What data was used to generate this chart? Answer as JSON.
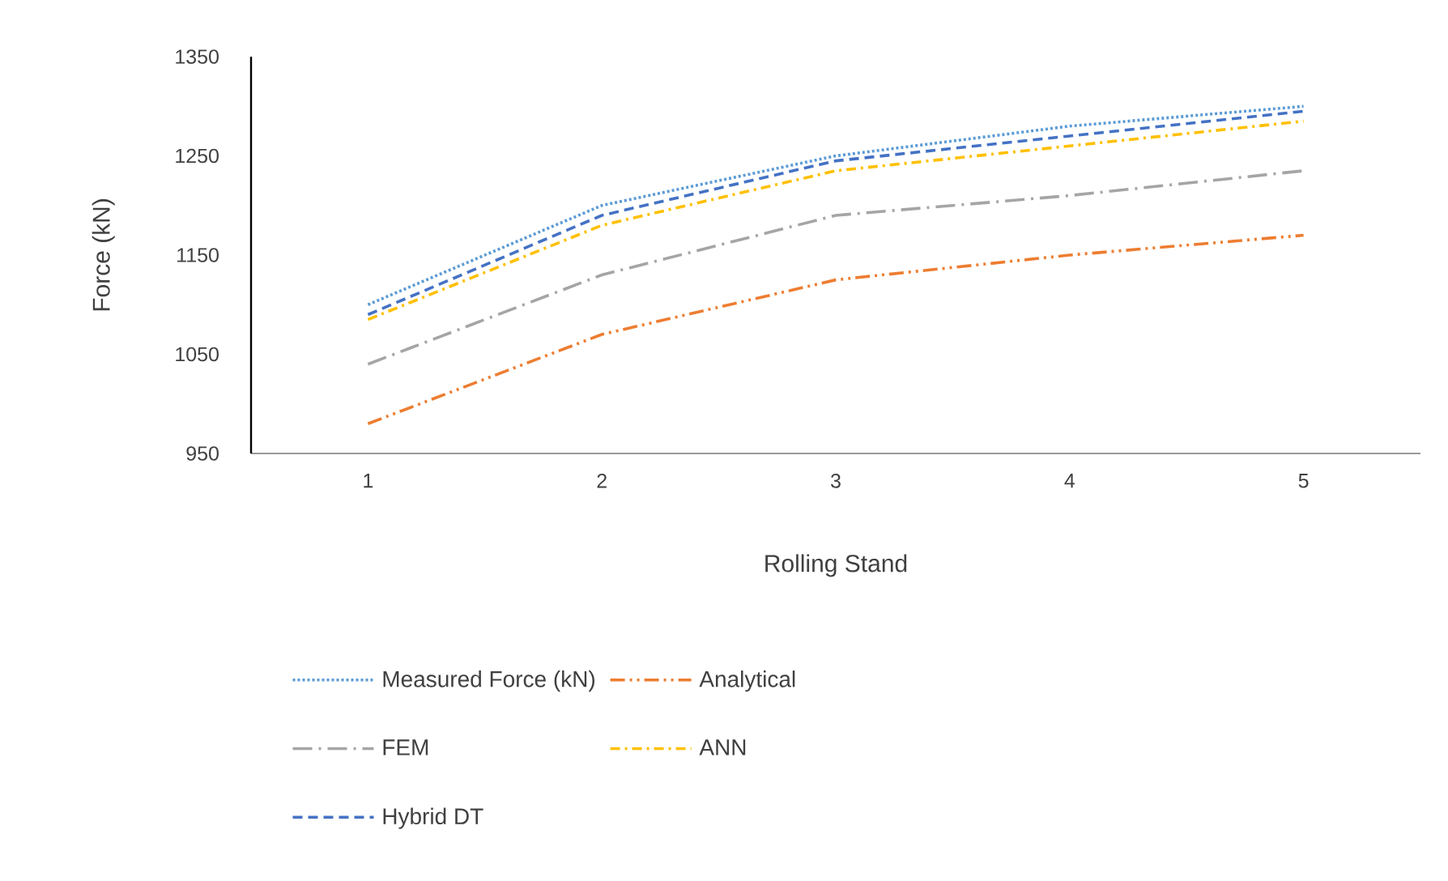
{
  "chart_data": {
    "type": "line",
    "xlabel": "Rolling Stand",
    "ylabel": "Force (kN)",
    "categories": [
      "1",
      "2",
      "3",
      "4",
      "5"
    ],
    "ylim": [
      950,
      1350
    ],
    "yticks": [
      950,
      1050,
      1150,
      1250,
      1350
    ],
    "grid": false,
    "legend": "bottom",
    "marker": "none",
    "series": [
      {
        "name": "Measured Force (kN)",
        "color": "#5b9bd5",
        "line_style": "dotted",
        "values": [
          1100,
          1200,
          1250,
          1280,
          1300
        ]
      },
      {
        "name": "Analytical",
        "color": "#ed7d31",
        "line_style": "dashdotdot",
        "values": [
          980,
          1070,
          1125,
          1150,
          1170
        ]
      },
      {
        "name": "FEM",
        "color": "#a5a5a5",
        "line_style": "longdashdot",
        "values": [
          1040,
          1130,
          1190,
          1210,
          1235
        ]
      },
      {
        "name": "ANN",
        "color": "#ffc000",
        "line_style": "dashdot",
        "values": [
          1085,
          1180,
          1235,
          1260,
          1285
        ]
      },
      {
        "name": "Hybrid DT",
        "color": "#4472c4",
        "line_style": "dashed",
        "values": [
          1090,
          1190,
          1245,
          1270,
          1295
        ]
      }
    ]
  }
}
